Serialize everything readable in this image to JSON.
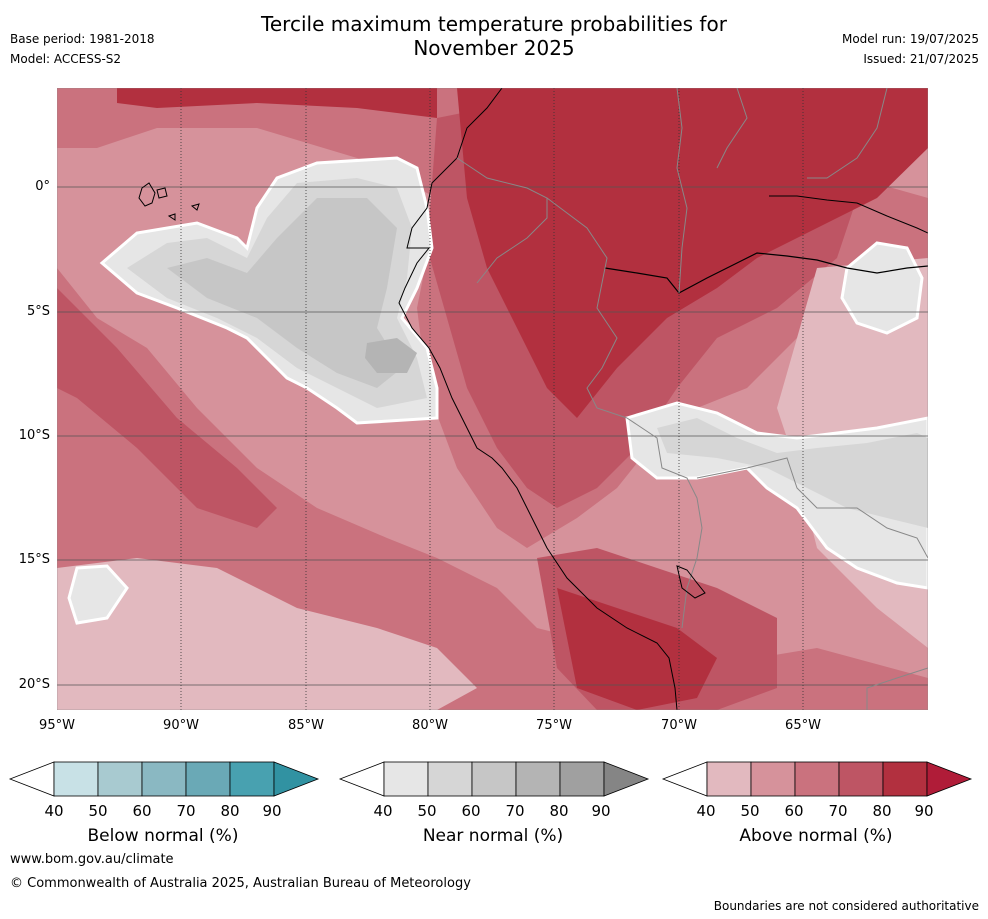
{
  "header": {
    "title_line1": "Tercile maximum temperature probabilities for",
    "title_line2": "November 2025",
    "base_period": "Base period: 1981-2018",
    "model": "Model: ACCESS-S2",
    "model_run": "Model run: 19/07/2025",
    "issued": "Issued: 21/07/2025"
  },
  "axes": {
    "lat_labels": [
      "0°",
      "5°S",
      "10°S",
      "15°S",
      "20°S"
    ],
    "lon_labels": [
      "95°W",
      "90°W",
      "85°W",
      "80°W",
      "75°W",
      "70°W",
      "65°W"
    ]
  },
  "colorbars": [
    {
      "title": "Below normal (%)",
      "ticks": [
        "40",
        "50",
        "60",
        "70",
        "80",
        "90"
      ],
      "colors": [
        "#c8e1e6",
        "#a8cad0",
        "#8ab8c2",
        "#6aa9b6",
        "#48a1b0"
      ],
      "extend_color": "#3192a2"
    },
    {
      "title": "Near normal (%)",
      "ticks": [
        "40",
        "50",
        "60",
        "70",
        "80",
        "90"
      ],
      "colors": [
        "#e6e6e6",
        "#d6d6d6",
        "#c6c6c6",
        "#b4b4b4",
        "#a0a0a0"
      ],
      "extend_color": "#858585"
    },
    {
      "title": "Above normal (%)",
      "ticks": [
        "40",
        "50",
        "60",
        "70",
        "80",
        "90"
      ],
      "colors": [
        "#e2b9bf",
        "#d6929b",
        "#ca727e",
        "#be5564",
        "#b2303f"
      ],
      "extend_color": "#b01c38"
    }
  ],
  "map_colors": {
    "above_40": "#e2b9bf",
    "above_50": "#d6929b",
    "above_60": "#ca727e",
    "above_70": "#be5564",
    "above_80": "#b2303f",
    "above_90": "#b01c38",
    "near_40": "#e6e6e6",
    "near_50": "#d6d6d6",
    "near_60": "#c6c6c6",
    "near_70": "#b4b4b4"
  },
  "footer": {
    "url": "www.bom.gov.au/climate",
    "copyright": "© Commonwealth of Australia 2025, Australian Bureau of Meteorology",
    "note": "Boundaries are not considered authoritative"
  }
}
